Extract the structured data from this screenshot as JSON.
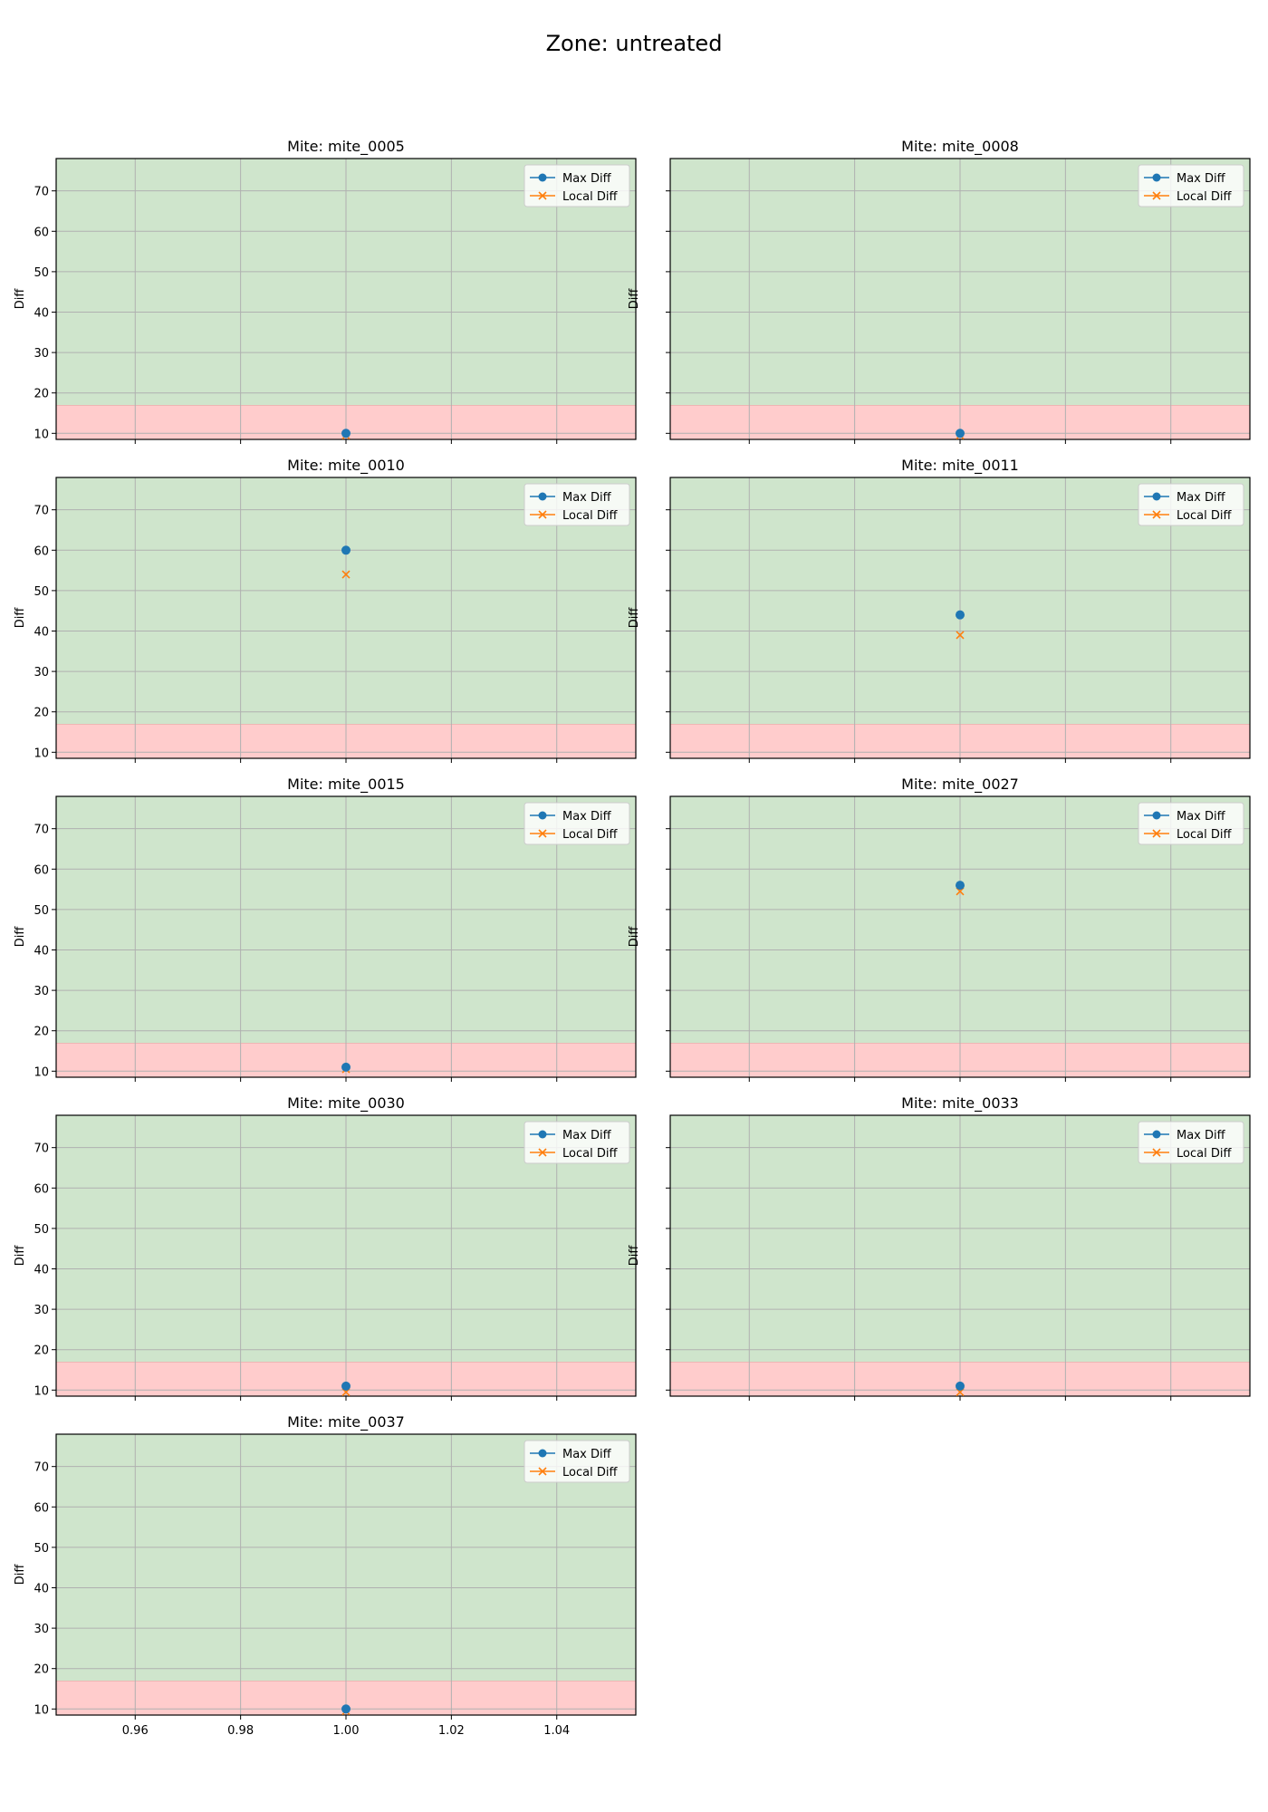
{
  "figure": {
    "title": "Zone: untreated"
  },
  "colors": {
    "max_diff": "#1f77b4",
    "local_diff": "#ff7f0e",
    "green_band": "#cfe5cc",
    "red_band": "#ffcccc",
    "grid": "#b0b0b0"
  },
  "chart_data": [
    {
      "type": "scatter",
      "title": "Mite: mite_0005",
      "ylabel": "Diff",
      "xlim": [
        0.945,
        1.055
      ],
      "ylim": [
        8.5,
        78
      ],
      "xticks": [
        0.96,
        0.98,
        1.0,
        1.02,
        1.04
      ],
      "xtick_labels_visible": false,
      "yticks": [
        10,
        20,
        30,
        40,
        50,
        60,
        70
      ],
      "yticklabels_visible": true,
      "bands": [
        {
          "y0": 8.5,
          "y1": 17,
          "color": "red"
        },
        {
          "y0": 17,
          "y1": 78,
          "color": "green"
        }
      ],
      "series": [
        {
          "name": "Max Diff",
          "marker": "o",
          "x": [
            1.0
          ],
          "y": [
            10
          ]
        },
        {
          "name": "Local Diff",
          "marker": "x",
          "x": [
            1.0
          ],
          "y": [
            9.5
          ]
        }
      ],
      "legend": "top-right",
      "grid": true
    },
    {
      "type": "scatter",
      "title": "Mite: mite_0008",
      "ylabel": "Diff",
      "xlim": [
        0.945,
        1.055
      ],
      "ylim": [
        8.5,
        78
      ],
      "xticks": [
        0.96,
        0.98,
        1.0,
        1.02,
        1.04
      ],
      "xtick_labels_visible": false,
      "yticks": [
        10,
        20,
        30,
        40,
        50,
        60,
        70
      ],
      "yticklabels_visible": false,
      "bands": [
        {
          "y0": 8.5,
          "y1": 17,
          "color": "red"
        },
        {
          "y0": 17,
          "y1": 78,
          "color": "green"
        }
      ],
      "series": [
        {
          "name": "Max Diff",
          "marker": "o",
          "x": [
            1.0
          ],
          "y": [
            10
          ]
        },
        {
          "name": "Local Diff",
          "marker": "x",
          "x": [
            1.0
          ],
          "y": [
            9.5
          ]
        }
      ],
      "legend": "top-right",
      "grid": true
    },
    {
      "type": "scatter",
      "title": "Mite: mite_0010",
      "ylabel": "Diff",
      "xlim": [
        0.945,
        1.055
      ],
      "ylim": [
        8.5,
        78
      ],
      "xticks": [
        0.96,
        0.98,
        1.0,
        1.02,
        1.04
      ],
      "xtick_labels_visible": false,
      "yticks": [
        10,
        20,
        30,
        40,
        50,
        60,
        70
      ],
      "yticklabels_visible": true,
      "bands": [
        {
          "y0": 8.5,
          "y1": 17,
          "color": "red"
        },
        {
          "y0": 17,
          "y1": 78,
          "color": "green"
        }
      ],
      "series": [
        {
          "name": "Max Diff",
          "marker": "o",
          "x": [
            1.0
          ],
          "y": [
            60
          ]
        },
        {
          "name": "Local Diff",
          "marker": "x",
          "x": [
            1.0
          ],
          "y": [
            54
          ]
        }
      ],
      "legend": "top-right",
      "grid": true
    },
    {
      "type": "scatter",
      "title": "Mite: mite_0011",
      "ylabel": "Diff",
      "xlim": [
        0.945,
        1.055
      ],
      "ylim": [
        8.5,
        78
      ],
      "xticks": [
        0.96,
        0.98,
        1.0,
        1.02,
        1.04
      ],
      "xtick_labels_visible": false,
      "yticks": [
        10,
        20,
        30,
        40,
        50,
        60,
        70
      ],
      "yticklabels_visible": false,
      "bands": [
        {
          "y0": 8.5,
          "y1": 17,
          "color": "red"
        },
        {
          "y0": 17,
          "y1": 78,
          "color": "green"
        }
      ],
      "series": [
        {
          "name": "Max Diff",
          "marker": "o",
          "x": [
            1.0
          ],
          "y": [
            44
          ]
        },
        {
          "name": "Local Diff",
          "marker": "x",
          "x": [
            1.0
          ],
          "y": [
            39
          ]
        }
      ],
      "legend": "top-right",
      "grid": true
    },
    {
      "type": "scatter",
      "title": "Mite: mite_0015",
      "ylabel": "Diff",
      "xlim": [
        0.945,
        1.055
      ],
      "ylim": [
        8.5,
        78
      ],
      "xticks": [
        0.96,
        0.98,
        1.0,
        1.02,
        1.04
      ],
      "xtick_labels_visible": false,
      "yticks": [
        10,
        20,
        30,
        40,
        50,
        60,
        70
      ],
      "yticklabels_visible": true,
      "bands": [
        {
          "y0": 8.5,
          "y1": 17,
          "color": "red"
        },
        {
          "y0": 17,
          "y1": 78,
          "color": "green"
        }
      ],
      "series": [
        {
          "name": "Max Diff",
          "marker": "o",
          "x": [
            1.0
          ],
          "y": [
            11
          ]
        },
        {
          "name": "Local Diff",
          "marker": "x",
          "x": [
            1.0
          ],
          "y": [
            10.5
          ]
        }
      ],
      "legend": "top-right",
      "grid": true
    },
    {
      "type": "scatter",
      "title": "Mite: mite_0027",
      "ylabel": "Diff",
      "xlim": [
        0.945,
        1.055
      ],
      "ylim": [
        8.5,
        78
      ],
      "xticks": [
        0.96,
        0.98,
        1.0,
        1.02,
        1.04
      ],
      "xtick_labels_visible": false,
      "yticks": [
        10,
        20,
        30,
        40,
        50,
        60,
        70
      ],
      "yticklabels_visible": false,
      "bands": [
        {
          "y0": 8.5,
          "y1": 17,
          "color": "red"
        },
        {
          "y0": 17,
          "y1": 78,
          "color": "green"
        }
      ],
      "series": [
        {
          "name": "Max Diff",
          "marker": "o",
          "x": [
            1.0
          ],
          "y": [
            56
          ]
        },
        {
          "name": "Local Diff",
          "marker": "x",
          "x": [
            1.0
          ],
          "y": [
            54.5
          ]
        }
      ],
      "legend": "top-right",
      "grid": true
    },
    {
      "type": "scatter",
      "title": "Mite: mite_0030",
      "ylabel": "Diff",
      "xlim": [
        0.945,
        1.055
      ],
      "ylim": [
        8.5,
        78
      ],
      "xticks": [
        0.96,
        0.98,
        1.0,
        1.02,
        1.04
      ],
      "xtick_labels_visible": false,
      "yticks": [
        10,
        20,
        30,
        40,
        50,
        60,
        70
      ],
      "yticklabels_visible": true,
      "bands": [
        {
          "y0": 8.5,
          "y1": 17,
          "color": "red"
        },
        {
          "y0": 17,
          "y1": 78,
          "color": "green"
        }
      ],
      "series": [
        {
          "name": "Max Diff",
          "marker": "o",
          "x": [
            1.0
          ],
          "y": [
            11
          ]
        },
        {
          "name": "Local Diff",
          "marker": "x",
          "x": [
            1.0
          ],
          "y": [
            9.5
          ]
        }
      ],
      "legend": "top-right",
      "grid": true
    },
    {
      "type": "scatter",
      "title": "Mite: mite_0033",
      "ylabel": "Diff",
      "xlim": [
        0.945,
        1.055
      ],
      "ylim": [
        8.5,
        78
      ],
      "xticks": [
        0.96,
        0.98,
        1.0,
        1.02,
        1.04
      ],
      "xtick_labels_visible": false,
      "yticks": [
        10,
        20,
        30,
        40,
        50,
        60,
        70
      ],
      "yticklabels_visible": false,
      "bands": [
        {
          "y0": 8.5,
          "y1": 17,
          "color": "red"
        },
        {
          "y0": 17,
          "y1": 78,
          "color": "green"
        }
      ],
      "series": [
        {
          "name": "Max Diff",
          "marker": "o",
          "x": [
            1.0
          ],
          "y": [
            11
          ]
        },
        {
          "name": "Local Diff",
          "marker": "x",
          "x": [
            1.0
          ],
          "y": [
            9.5
          ]
        }
      ],
      "legend": "top-right",
      "grid": true
    },
    {
      "type": "scatter",
      "title": "Mite: mite_0037",
      "ylabel": "Diff",
      "xlim": [
        0.945,
        1.055
      ],
      "ylim": [
        8.5,
        78
      ],
      "xticks": [
        0.96,
        0.98,
        1.0,
        1.02,
        1.04
      ],
      "xtick_labels_visible": true,
      "xtick_labels": [
        "0.96",
        "0.98",
        "1.00",
        "1.02",
        "1.04"
      ],
      "yticks": [
        10,
        20,
        30,
        40,
        50,
        60,
        70
      ],
      "yticklabels_visible": true,
      "bands": [
        {
          "y0": 8.5,
          "y1": 17,
          "color": "red"
        },
        {
          "y0": 17,
          "y1": 78,
          "color": "green"
        }
      ],
      "series": [
        {
          "name": "Max Diff",
          "marker": "o",
          "x": [
            1.0
          ],
          "y": [
            10
          ]
        },
        {
          "name": "Local Diff",
          "marker": "x",
          "x": [
            1.0
          ],
          "y": [
            9.5
          ]
        }
      ],
      "legend": "top-right",
      "grid": true
    }
  ]
}
